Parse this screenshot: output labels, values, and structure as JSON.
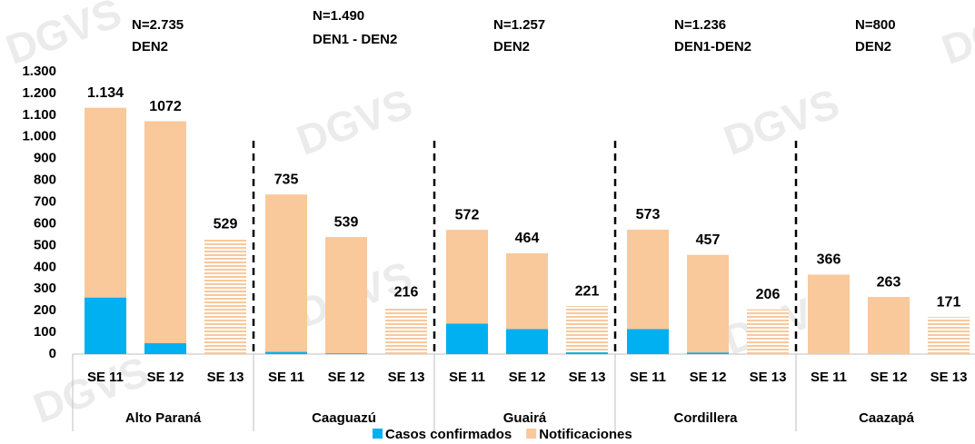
{
  "chart_data": {
    "type": "overlap_bar",
    "watermark": "DGVS",
    "groups": [
      "Alto Paraná",
      "Caaguazú",
      "Guairá",
      "Cordillera",
      "Caazapá"
    ],
    "group_annotations": [
      [
        "N=2.735",
        "DEN2"
      ],
      [
        "N=1.490",
        "DEN1 - DEN2"
      ],
      [
        "N=1.257",
        "DEN2"
      ],
      [
        "N=1.236",
        "DEN1-DEN2"
      ],
      [
        "N=800",
        "DEN2"
      ]
    ],
    "categories": [
      "SE 11",
      "SE 12",
      "SE 13",
      "SE 11",
      "SE 12",
      "SE 13",
      "SE 11",
      "SE 12",
      "SE 13",
      "SE 11",
      "SE 12",
      "SE 13",
      "SE 11",
      "SE 12",
      "SE 13"
    ],
    "hatched": [
      false,
      false,
      true,
      false,
      false,
      true,
      false,
      false,
      true,
      false,
      false,
      true,
      false,
      false,
      true
    ],
    "series": [
      {
        "name": "Casos confirmados",
        "color": "#00b0f0",
        "values": [
          260,
          50,
          0,
          10,
          3,
          0,
          140,
          115,
          8,
          115,
          7,
          0,
          0,
          0,
          0
        ]
      },
      {
        "name": "Notificaciones",
        "color": "#f9c89b",
        "values": [
          1134,
          1072,
          529,
          735,
          539,
          216,
          572,
          464,
          221,
          573,
          457,
          206,
          366,
          263,
          171
        ],
        "value_labels": [
          "1.134",
          "1072",
          "529",
          "735",
          "539",
          "216",
          "572",
          "464",
          "221",
          "573",
          "457",
          "206",
          "366",
          "263",
          "171"
        ]
      }
    ],
    "ylim": [
      0,
      1300
    ],
    "yticks": [
      0,
      100,
      200,
      300,
      400,
      500,
      600,
      700,
      800,
      900,
      {
        "value": 1000,
        "label": "1.000"
      },
      {
        "value": 1100,
        "label": "1.100"
      },
      {
        "value": 1200,
        "label": "1.200"
      },
      {
        "value": 1300,
        "label": "1.300"
      }
    ],
    "grid": false
  }
}
